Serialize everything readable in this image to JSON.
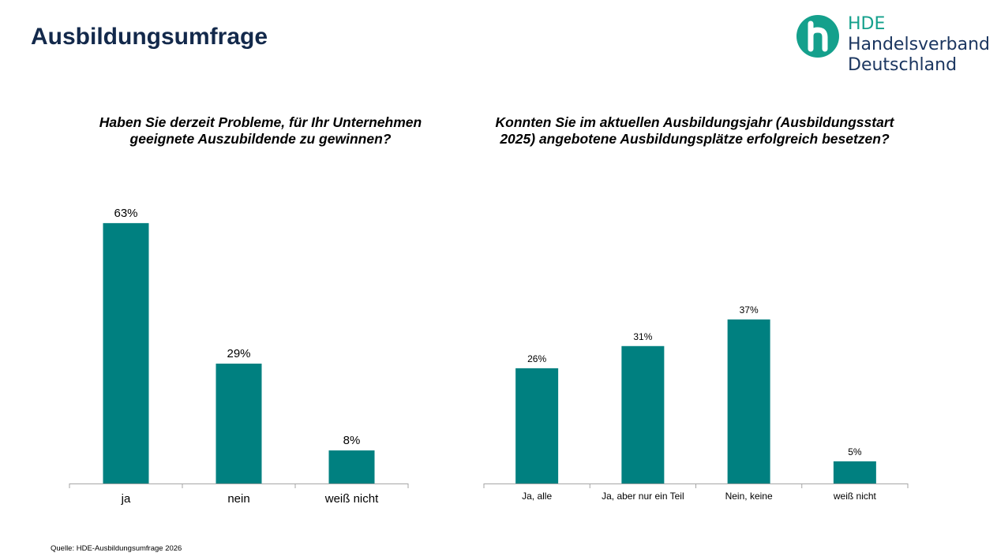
{
  "header": {
    "title": "Ausbildungsumfrage",
    "logo": {
      "line1": "HDE",
      "line2": "Handelsverband",
      "line3": "Deutschland",
      "mark_color": "#14a08c",
      "text_color": "#1b3660"
    }
  },
  "colors": {
    "bar": "#008080",
    "axis": "#a6a6a6"
  },
  "chart_data": [
    {
      "type": "bar",
      "title": "Haben Sie derzeit Probleme, für Ihr Unternehmen geeignete Auszubildende zu gewinnen?",
      "categories": [
        "ja",
        "nein",
        "weiß nicht"
      ],
      "values": [
        63,
        29,
        8
      ],
      "labels": [
        "63%",
        "29%",
        "8%"
      ],
      "ylim": [
        0,
        100
      ],
      "grid": false,
      "legend": "none"
    },
    {
      "type": "bar",
      "title": "Konnten Sie im aktuellen Ausbildungsjahr (Ausbildungsstart 2025) angebotene Ausbildungsplätze erfolgreich besetzen?",
      "categories": [
        "Ja, alle",
        "Ja, aber nur ein Teil",
        "Nein, keine",
        "weiß nicht"
      ],
      "values": [
        26,
        31,
        37,
        5
      ],
      "labels": [
        "26%",
        "31%",
        "37%",
        "5%"
      ],
      "ylim": [
        0,
        100
      ],
      "grid": false,
      "legend": "none"
    }
  ],
  "footer": {
    "source": "Quelle: HDE-Ausbildungsumfrage 2026"
  }
}
